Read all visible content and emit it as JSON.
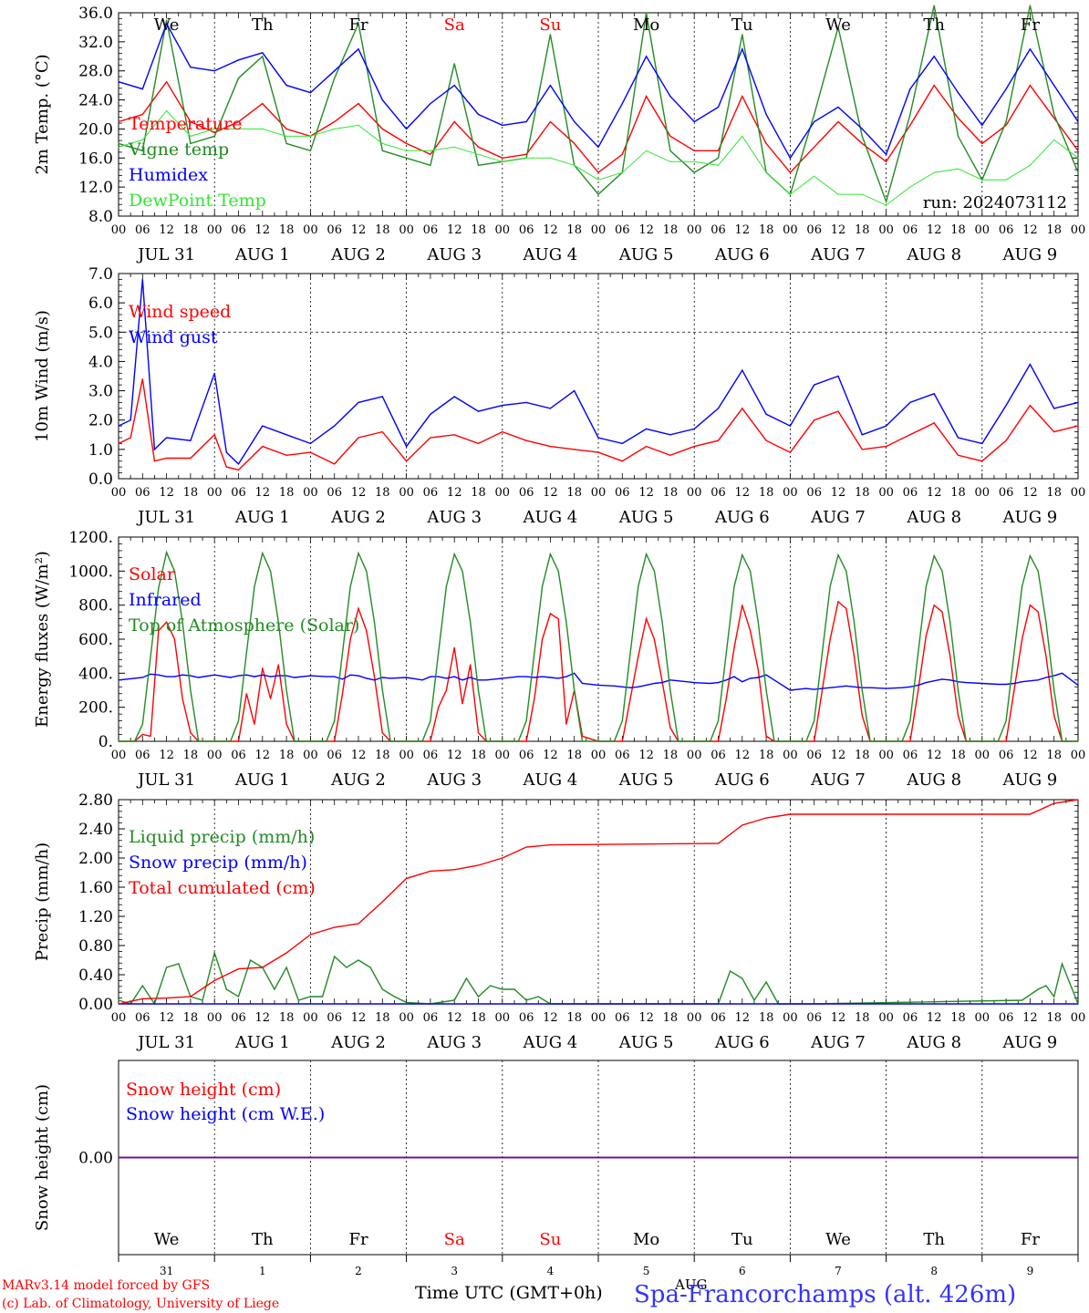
{
  "days": {
    "labels": [
      "We",
      "Th",
      "Fr",
      "Sa",
      "Su",
      "Mo",
      "Tu",
      "We",
      "Th",
      "Fr"
    ],
    "weekend_flags": [
      false,
      false,
      false,
      true,
      true,
      false,
      false,
      false,
      false,
      false
    ],
    "dates": [
      "JUL 31",
      "AUG  1",
      "AUG  2",
      "AUG  3",
      "AUG  4",
      "AUG  5",
      "AUG  6",
      "AUG  7",
      "AUG  8",
      "AUG  9"
    ],
    "day_numbers": [
      "31",
      "1",
      "2",
      "3",
      "4",
      "5",
      "6",
      "7",
      "8",
      "9"
    ],
    "hour_ticks": [
      "00",
      "06",
      "12",
      "18"
    ],
    "final_hour_tick": "00"
  },
  "colors": {
    "red": "#ff0000",
    "dark_green": "#228b22",
    "blue": "#0000ff",
    "light_green": "#32e632",
    "purple": "#800080",
    "black": "#000000"
  },
  "chart_data": [
    {
      "type": "line",
      "ylabel": "2m Temp. (°C)",
      "ylim": [
        8,
        36
      ],
      "yticks": [
        "8.0",
        "12.0",
        "16.0",
        "20.0",
        "24.0",
        "28.0",
        "32.0",
        "36.0"
      ],
      "annotation": "run: 2024073112",
      "x_hours": [
        0,
        6,
        12,
        18,
        24,
        30,
        36,
        42,
        48,
        54,
        60,
        66,
        72,
        78,
        84,
        90,
        96,
        102,
        108,
        114,
        120,
        126,
        132,
        138,
        144,
        150,
        156,
        162,
        168,
        174,
        180,
        186,
        192,
        198,
        204,
        210,
        216,
        222,
        228,
        234,
        240
      ],
      "series": [
        {
          "name": "Temperature",
          "color": "red",
          "values": [
            21,
            22,
            26.5,
            21,
            19.5,
            21,
            23.5,
            20,
            19,
            21,
            23.5,
            20,
            18,
            16.5,
            21,
            17.5,
            16,
            16.5,
            21,
            18,
            14,
            16.5,
            24.5,
            19,
            17,
            17,
            24.5,
            18,
            14,
            17.5,
            21,
            18,
            15.5,
            20.5,
            26,
            21.5,
            18,
            20.5,
            26,
            21.5,
            17
          ]
        },
        {
          "name": "Vigne temp",
          "color": "dark_green",
          "values": [
            18,
            17,
            35,
            18,
            19,
            27,
            30,
            18,
            17,
            27,
            34.5,
            17,
            16,
            15,
            29,
            15,
            15.5,
            16,
            33,
            15,
            11,
            14,
            36,
            17,
            14,
            16,
            33,
            14,
            11,
            22,
            34,
            19,
            10,
            22,
            37,
            19,
            13,
            21,
            37,
            22,
            14
          ]
        },
        {
          "name": "Humidex",
          "color": "blue",
          "values": [
            26.5,
            25.5,
            34.5,
            28.5,
            28,
            29.5,
            30.5,
            26,
            25,
            28,
            31,
            24,
            20,
            23.5,
            26,
            22,
            20.5,
            21,
            26,
            21,
            17.5,
            23.5,
            30,
            24.5,
            21,
            23,
            31,
            22,
            16,
            21,
            23,
            20,
            16.5,
            25.5,
            30,
            25,
            20.5,
            25.5,
            31,
            26,
            21
          ]
        },
        {
          "name": "DewPoint Temp",
          "color": "light_green",
          "values": [
            17.5,
            18.5,
            22.5,
            19,
            20,
            20,
            20,
            19,
            19,
            20,
            20.5,
            18,
            17,
            17,
            17.5,
            16.5,
            15.5,
            16,
            16,
            15,
            13,
            14,
            17,
            15.5,
            15.5,
            15,
            19,
            14,
            11,
            13.5,
            11,
            11,
            9.5,
            12,
            14,
            14.5,
            13,
            13,
            15,
            18.5,
            16
          ]
        }
      ]
    },
    {
      "type": "line",
      "ylabel": "10m Wind (m/s)",
      "ylim": [
        0,
        7
      ],
      "yticks": [
        "0.0",
        "1.0",
        "2.0",
        "3.0",
        "4.0",
        "5.0",
        "6.0",
        "7.0"
      ],
      "reference_line": 5,
      "x_hours": [
        0,
        3,
        6,
        9,
        12,
        18,
        24,
        27,
        30,
        36,
        42,
        48,
        54,
        60,
        66,
        72,
        78,
        84,
        90,
        96,
        102,
        108,
        114,
        120,
        126,
        132,
        138,
        144,
        150,
        156,
        162,
        168,
        174,
        180,
        186,
        192,
        198,
        204,
        210,
        216,
        222,
        228,
        234,
        240
      ],
      "series": [
        {
          "name": "Wind speed",
          "color": "red",
          "values": [
            1.2,
            1.4,
            3.4,
            0.6,
            0.7,
            0.7,
            1.5,
            0.4,
            0.3,
            1.1,
            0.8,
            0.9,
            0.5,
            1.4,
            1.6,
            0.6,
            1.4,
            1.5,
            1.2,
            1.6,
            1.3,
            1.1,
            1.0,
            0.9,
            0.6,
            1.1,
            0.8,
            1.1,
            1.3,
            2.4,
            1.3,
            0.9,
            2.0,
            2.3,
            1.0,
            1.1,
            1.5,
            1.9,
            0.8,
            0.6,
            1.3,
            2.5,
            1.6,
            1.8
          ]
        },
        {
          "name": "Wind gust",
          "color": "blue",
          "values": [
            1.8,
            2.0,
            6.8,
            1.0,
            1.4,
            1.3,
            3.6,
            0.9,
            0.5,
            1.8,
            1.5,
            1.2,
            1.8,
            2.6,
            2.8,
            1.1,
            2.2,
            2.8,
            2.3,
            2.5,
            2.6,
            2.4,
            3.0,
            1.4,
            1.2,
            1.7,
            1.5,
            1.7,
            2.4,
            3.7,
            2.2,
            1.8,
            3.2,
            3.5,
            1.5,
            1.8,
            2.6,
            2.9,
            1.4,
            1.2,
            2.5,
            3.9,
            2.4,
            2.6
          ]
        }
      ]
    },
    {
      "type": "line",
      "ylabel": "Energy fluxes (W/m²)",
      "ylim": [
        0,
        1200
      ],
      "yticks": [
        "0.",
        "200.",
        "400.",
        "600.",
        "800.",
        "1000.",
        "1200."
      ],
      "x_hours": [
        0,
        4,
        6,
        8,
        10,
        12,
        14,
        16,
        18,
        20,
        24,
        28,
        30,
        32,
        34,
        36,
        38,
        40,
        42,
        44,
        48,
        52,
        54,
        56,
        58,
        60,
        62,
        64,
        66,
        68,
        72,
        76,
        78,
        80,
        82,
        84,
        86,
        88,
        90,
        92,
        96,
        100,
        102,
        104,
        106,
        108,
        110,
        112,
        114,
        116,
        120,
        124,
        126,
        128,
        130,
        132,
        134,
        136,
        138,
        140,
        144,
        148,
        150,
        152,
        154,
        156,
        158,
        160,
        162,
        164,
        168,
        172,
        174,
        176,
        178,
        180,
        182,
        184,
        186,
        188,
        192,
        196,
        198,
        200,
        202,
        204,
        206,
        208,
        210,
        212,
        216,
        220,
        222,
        224,
        226,
        228,
        230,
        232,
        234,
        236,
        240
      ],
      "series": [
        {
          "name": "Solar",
          "color": "red",
          "values": [
            0,
            0,
            40,
            30,
            650,
            700,
            600,
            250,
            50,
            0,
            0,
            0,
            0,
            280,
            100,
            430,
            250,
            450,
            100,
            0,
            0,
            0,
            0,
            280,
            600,
            780,
            650,
            380,
            50,
            0,
            0,
            0,
            0,
            200,
            300,
            550,
            220,
            450,
            50,
            0,
            0,
            0,
            0,
            250,
            600,
            750,
            720,
            100,
            300,
            30,
            0,
            0,
            0,
            250,
            500,
            720,
            600,
            350,
            80,
            0,
            0,
            0,
            0,
            250,
            550,
            800,
            650,
            420,
            30,
            0,
            0,
            0,
            0,
            300,
            600,
            820,
            780,
            500,
            150,
            0,
            0,
            0,
            0,
            300,
            620,
            800,
            760,
            500,
            150,
            0,
            0,
            0,
            0,
            300,
            600,
            800,
            760,
            500,
            150,
            0,
            0
          ]
        },
        {
          "name": "Infrared",
          "color": "blue",
          "values": [
            360,
            370,
            375,
            395,
            390,
            380,
            380,
            390,
            385,
            375,
            390,
            375,
            385,
            390,
            380,
            390,
            380,
            385,
            385,
            375,
            385,
            380,
            380,
            365,
            390,
            385,
            370,
            360,
            375,
            370,
            375,
            360,
            380,
            380,
            370,
            380,
            360,
            375,
            360,
            360,
            370,
            380,
            380,
            375,
            380,
            375,
            370,
            380,
            400,
            340,
            330,
            325,
            320,
            315,
            320,
            330,
            340,
            345,
            360,
            355,
            345,
            340,
            345,
            360,
            380,
            350,
            370,
            375,
            390,
            360,
            300,
            310,
            305,
            310,
            315,
            320,
            325,
            320,
            315,
            315,
            310,
            315,
            320,
            330,
            345,
            355,
            365,
            360,
            350,
            345,
            340,
            335,
            335,
            340,
            350,
            355,
            360,
            375,
            385,
            400,
            330
          ]
        },
        {
          "name": "Top of Atmosphere (Solar)",
          "color": "dark_green",
          "values": [
            0,
            0,
            100,
            500,
            900,
            1110,
            1000,
            700,
            300,
            0,
            0,
            0,
            120,
            520,
            910,
            1105,
            1000,
            700,
            300,
            0,
            0,
            0,
            120,
            520,
            910,
            1105,
            1000,
            700,
            300,
            0,
            0,
            0,
            120,
            520,
            910,
            1100,
            1000,
            700,
            300,
            0,
            0,
            0,
            120,
            520,
            910,
            1100,
            1000,
            700,
            300,
            0,
            0,
            0,
            120,
            520,
            910,
            1100,
            1000,
            700,
            300,
            0,
            0,
            0,
            120,
            520,
            910,
            1095,
            1000,
            700,
            300,
            0,
            0,
            0,
            120,
            520,
            910,
            1095,
            1000,
            700,
            300,
            0,
            0,
            0,
            120,
            520,
            910,
            1090,
            1000,
            700,
            300,
            0,
            0,
            0,
            120,
            520,
            910,
            1090,
            1000,
            700,
            300,
            0,
            0
          ]
        }
      ]
    },
    {
      "type": "line",
      "ylabel": "Precip (mm/h)",
      "ylim": [
        0,
        2.8
      ],
      "yticks": [
        "0.00",
        "0.40",
        "0.80",
        "1.20",
        "1.60",
        "2.00",
        "2.40",
        "2.80"
      ],
      "series": [
        {
          "name": "Liquid precip (mm/h)",
          "color": "dark_green",
          "x_hours": [
            0,
            3,
            6,
            9,
            12,
            15,
            18,
            21,
            24,
            27,
            30,
            33,
            36,
            39,
            42,
            45,
            48,
            51,
            54,
            57,
            60,
            63,
            66,
            69,
            72,
            78,
            84,
            87,
            90,
            93,
            96,
            99,
            102,
            105,
            108,
            114,
            150,
            153,
            156,
            159,
            162,
            165,
            168,
            174,
            226,
            230,
            232,
            234,
            236,
            240
          ],
          "values": [
            0.05,
            0.0,
            0.25,
            0.0,
            0.5,
            0.55,
            0.1,
            0.05,
            0.7,
            0.2,
            0.1,
            0.6,
            0.5,
            0.2,
            0.5,
            0.05,
            0.1,
            0.1,
            0.65,
            0.5,
            0.6,
            0.5,
            0.2,
            0.1,
            0.02,
            0.0,
            0.05,
            0.35,
            0.1,
            0.25,
            0.2,
            0.2,
            0.05,
            0.1,
            0.0,
            0.0,
            0.0,
            0.45,
            0.35,
            0.05,
            0.3,
            0.0,
            0.0,
            0.0,
            0.05,
            0.2,
            0.25,
            0.1,
            0.55,
            0.0
          ]
        },
        {
          "name": "Snow precip (mm/h)",
          "color": "blue",
          "x_hours": [
            0,
            240
          ],
          "values": [
            0,
            0
          ]
        },
        {
          "name": "Total cumulated (cm)",
          "color": "red",
          "x_hours": [
            0,
            6,
            12,
            18,
            24,
            30,
            36,
            42,
            48,
            54,
            60,
            66,
            72,
            78,
            84,
            90,
            96,
            102,
            108,
            150,
            156,
            162,
            168,
            228,
            234,
            240
          ],
          "values": [
            0.0,
            0.07,
            0.08,
            0.1,
            0.32,
            0.48,
            0.5,
            0.7,
            0.95,
            1.05,
            1.1,
            1.4,
            1.72,
            1.82,
            1.84,
            1.9,
            2.0,
            2.15,
            2.18,
            2.2,
            2.45,
            2.55,
            2.6,
            2.6,
            2.75,
            2.8
          ]
        }
      ]
    },
    {
      "type": "line",
      "ylabel": "Snow height (cm)",
      "ylim": [
        -1,
        1
      ],
      "yticks": [
        "0.00"
      ],
      "x_hours": [
        0,
        240
      ],
      "series": [
        {
          "name": "Snow height (cm)",
          "color": "red",
          "values": [
            0,
            0
          ]
        },
        {
          "name": "Snow height (cm W.E.)",
          "color": "blue",
          "values": [
            0,
            0
          ]
        }
      ]
    }
  ],
  "footer": {
    "model_line": "MARv3.14 model forced by GFS",
    "lab_line": "(c) Lab. of Climatology, University of Liege",
    "xlabel": "Time UTC (GMT+0h)",
    "month_label": "AUG",
    "station": "Spa-Francorchamps (alt. 426m)"
  }
}
